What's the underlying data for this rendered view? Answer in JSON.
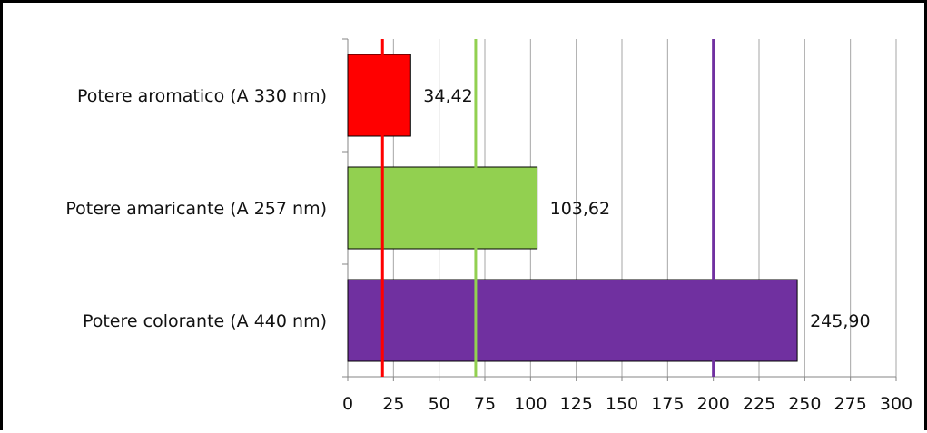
{
  "chart_data": {
    "type": "bar",
    "orientation": "horizontal",
    "categories": [
      "Potere aromatico (A 330 nm)",
      "Potere amaricante (A 257 nm)",
      "Potere colorante (A 440 nm)"
    ],
    "values": [
      34.42,
      103.62,
      245.9
    ],
    "data_labels": [
      "34,42",
      "103,62",
      "245,90"
    ],
    "bar_colors": [
      "#ff0000",
      "#92d050",
      "#7030a0"
    ],
    "xlim": [
      0,
      300
    ],
    "xticks": [
      0,
      25,
      50,
      75,
      100,
      125,
      150,
      175,
      200,
      225,
      250,
      275,
      300
    ],
    "xtick_labels": [
      "0",
      "25",
      "50",
      "75",
      "100",
      "125",
      "150",
      "175",
      "200",
      "225",
      "250",
      "275",
      "300"
    ],
    "reference_lines": [
      {
        "x": 19,
        "color": "#ff0000"
      },
      {
        "x": 70,
        "color": "#92d050"
      },
      {
        "x": 200,
        "color": "#7030a0"
      }
    ],
    "grid": "vertical",
    "legend": "none"
  }
}
